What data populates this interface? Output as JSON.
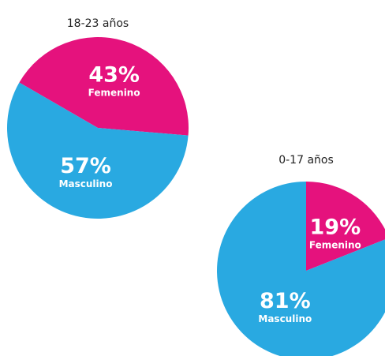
{
  "chart_data": [
    {
      "type": "pie",
      "title": "18-23 años",
      "categories": [
        "Femenino",
        "Masculino"
      ],
      "values": [
        43,
        57
      ],
      "value_labels": [
        "43%",
        "57%"
      ],
      "colors": [
        "#e5127d",
        "#29a9e1"
      ]
    },
    {
      "type": "pie",
      "title": "0-17 años",
      "categories": [
        "Femenino",
        "Masculino"
      ],
      "values": [
        19,
        81
      ],
      "value_labels": [
        "19%",
        "81%"
      ],
      "colors": [
        "#e5127d",
        "#29a9e1"
      ]
    }
  ]
}
